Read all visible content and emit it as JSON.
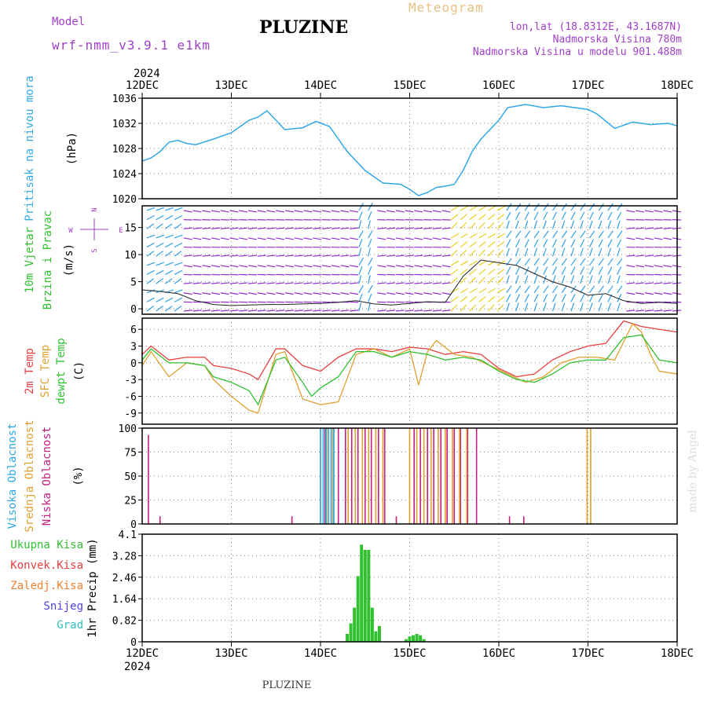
{
  "header": {
    "model_label": "Model",
    "model_name": "wrf-nmm_v3.9.1 e1km",
    "station": "PLUZINE",
    "product": "Meteogram",
    "coords": "lon,lat (18.8312E, 43.1687N)",
    "altitude": "Nadmorska Visina 780m",
    "model_altitude": "Nadmorska Visina u modelu 901.488m"
  },
  "footer": {
    "station": "PLUZINE",
    "credit": "made by Angel"
  },
  "time_axis": {
    "year": "2024",
    "ticks": [
      "12DEC",
      "13DEC",
      "14DEC",
      "15DEC",
      "16DEC",
      "17DEC",
      "18DEC"
    ],
    "range_days": [
      0,
      6
    ]
  },
  "colors": {
    "pressure": "#30a8e8",
    "t2m": "#e84040",
    "tsfc": "#e0a030",
    "dewpt": "#30c030",
    "cloud_high": "#30a8e8",
    "cloud_mid": "#e0a030",
    "cloud_low": "#c02080",
    "precip": "#30c030",
    "wind_purple": "#9030d0",
    "wind_blue": "#30a0e8"
  },
  "chart_data": [
    {
      "type": "line",
      "panel": "pressure",
      "ylabel_lines": [
        "Pritisak na nivou mora",
        "(hPa)"
      ],
      "ylim": [
        1020,
        1036
      ],
      "yticks": [
        "1036",
        "1032",
        "1028",
        "1024",
        "1020"
      ],
      "grid": true,
      "series": [
        {
          "x": [
            0,
            0.1,
            0.2,
            0.3,
            0.4,
            0.5,
            0.6,
            0.8,
            1.0,
            1.1,
            1.2,
            1.3,
            1.4,
            1.5,
            1.6,
            1.8,
            1.95,
            2.1,
            2.3,
            2.5,
            2.7,
            2.9,
            3.0,
            3.1,
            3.2,
            3.3,
            3.4,
            3.5,
            3.6,
            3.7,
            3.8,
            4.0,
            4.1,
            4.3,
            4.5,
            4.7,
            4.9,
            5.0,
            5.1,
            5.3,
            5.5,
            5.7,
            5.9,
            6.0
          ],
          "y": [
            1026,
            1026.5,
            1027.5,
            1029,
            1029.3,
            1028.8,
            1028.6,
            1029.5,
            1030.5,
            1031.5,
            1032.5,
            1033,
            1034,
            1032.5,
            1031,
            1031.3,
            1032.3,
            1031.5,
            1027.5,
            1024.5,
            1022.5,
            1022.3,
            1021.5,
            1020.5,
            1021,
            1021.8,
            1022,
            1022.3,
            1024.5,
            1027.5,
            1029.5,
            1032.5,
            1034.5,
            1035,
            1034.5,
            1034.8,
            1034.4,
            1034.2,
            1033.5,
            1031.2,
            1032.2,
            1031.8,
            1032,
            1031.6
          ]
        }
      ]
    },
    {
      "type": "line",
      "panel": "wind",
      "ylabel_lines": [
        "10m Vjetar",
        "Brzina i Pravac",
        "(m/s)"
      ],
      "compass": [
        "N",
        "W",
        "E",
        "S"
      ],
      "ylim": [
        -1,
        19
      ],
      "yticks": [
        "15",
        "10",
        "5",
        "0"
      ],
      "grid": true,
      "series": [
        {
          "x": [
            0,
            0.2,
            0.4,
            0.6,
            0.8,
            1.0,
            1.2,
            1.4,
            1.6,
            1.8,
            2.0,
            2.2,
            2.4,
            2.6,
            2.8,
            3.0,
            3.2,
            3.4,
            3.6,
            3.8,
            4.0,
            4.2,
            4.4,
            4.6,
            4.8,
            5.0,
            5.2,
            5.4,
            5.6,
            5.8,
            6.0
          ],
          "y": [
            3.5,
            3.2,
            2.8,
            1.5,
            0.8,
            0.6,
            0.7,
            0.8,
            0.8,
            0.9,
            1.0,
            1.2,
            1.5,
            0.9,
            0.7,
            1.0,
            1.3,
            1.2,
            6,
            9,
            8.5,
            8,
            6.5,
            5,
            4,
            2.5,
            2.8,
            1.5,
            1.0,
            1.2,
            1.0
          ]
        }
      ]
    },
    {
      "type": "line",
      "panel": "temperature",
      "ylabel_lines": [
        "2m Temp",
        "SFC Temp",
        "dewpt Temp",
        "(C)"
      ],
      "ylim": [
        -11,
        8
      ],
      "yticks": [
        "6",
        "3",
        "0",
        "-3",
        "-6",
        "-9"
      ],
      "grid": true,
      "series": [
        {
          "name": "2m Temp",
          "x": [
            0,
            0.1,
            0.3,
            0.5,
            0.7,
            0.8,
            1.0,
            1.2,
            1.3,
            1.5,
            1.6,
            1.8,
            2.0,
            2.2,
            2.4,
            2.6,
            2.8,
            3.0,
            3.2,
            3.4,
            3.6,
            3.8,
            4.0,
            4.2,
            4.4,
            4.6,
            4.8,
            5.0,
            5.2,
            5.4,
            5.6,
            5.8,
            6.0
          ],
          "y": [
            1.5,
            3.0,
            0.5,
            1.0,
            1.0,
            -0.5,
            -1.0,
            -2.0,
            -3.0,
            2.5,
            2.5,
            -0.5,
            -1.5,
            1.0,
            2.5,
            2.5,
            2.0,
            2.8,
            2.5,
            1.5,
            2.0,
            1.5,
            -1.0,
            -2.5,
            -2.0,
            0.5,
            2.0,
            3.0,
            3.5,
            7.5,
            6.5,
            6.0,
            5.5
          ]
        },
        {
          "name": "SFC Temp",
          "x": [
            0,
            0.1,
            0.3,
            0.5,
            0.7,
            0.8,
            1.0,
            1.2,
            1.3,
            1.5,
            1.6,
            1.8,
            2.0,
            2.2,
            2.4,
            2.6,
            2.8,
            3.0,
            3.1,
            3.2,
            3.3,
            3.5,
            3.7,
            3.9,
            4.1,
            4.3,
            4.5,
            4.7,
            4.9,
            5.1,
            5.3,
            5.5,
            5.6,
            5.7,
            5.8,
            6.0
          ],
          "y": [
            -0.5,
            2.0,
            -2.5,
            0.0,
            -0.5,
            -3.0,
            -6.0,
            -8.5,
            -9.0,
            1.5,
            2.0,
            -6.5,
            -7.5,
            -7.0,
            1.5,
            2.5,
            1.0,
            2.5,
            -4.0,
            2.0,
            4.0,
            1.5,
            1.0,
            -0.5,
            -2.0,
            -3.5,
            -2.5,
            0.0,
            1.0,
            1.0,
            0.5,
            7.0,
            5.5,
            1.5,
            -1.5,
            -2.0
          ]
        },
        {
          "name": "dewpt Temp",
          "x": [
            0,
            0.1,
            0.3,
            0.5,
            0.7,
            0.8,
            1.0,
            1.2,
            1.3,
            1.5,
            1.6,
            1.8,
            1.9,
            2.0,
            2.2,
            2.4,
            2.6,
            2.8,
            3.0,
            3.2,
            3.4,
            3.6,
            3.8,
            4.0,
            4.2,
            4.4,
            4.6,
            4.8,
            5.0,
            5.2,
            5.4,
            5.6,
            5.8,
            6.0
          ],
          "y": [
            0.5,
            2.5,
            0.0,
            0.0,
            -0.5,
            -2.5,
            -3.5,
            -5.0,
            -7.5,
            0.5,
            1.0,
            -3.5,
            -6.0,
            -4.5,
            -2.5,
            2.0,
            2.0,
            1.0,
            2.0,
            1.5,
            0.5,
            1.0,
            0.5,
            -1.5,
            -3.0,
            -3.5,
            -2.0,
            0.0,
            0.5,
            0.5,
            4.5,
            5.0,
            0.5,
            0.0
          ]
        }
      ]
    },
    {
      "type": "bar",
      "panel": "clouds",
      "ylabel_lines": [
        "Visoka Oblacnost",
        "Srednja Oblacnost",
        "Niska Oblacnost",
        "(%)"
      ],
      "ylim": [
        0,
        100
      ],
      "yticks": [
        "100",
        "75",
        "50",
        "25",
        "0"
      ],
      "grid": true,
      "series": [
        {
          "name": "Niska Oblacnost",
          "x": [
            0.07,
            0.2,
            1.68,
            2.05,
            2.12,
            2.2,
            2.28,
            2.35,
            2.42,
            2.5,
            2.57,
            2.65,
            2.72,
            2.85,
            3.05,
            3.12,
            3.2,
            3.27,
            3.35,
            3.42,
            3.5,
            3.57,
            3.65,
            3.75,
            4.12,
            4.28
          ],
          "y": [
            93,
            8,
            8,
            100,
            100,
            100,
            100,
            100,
            100,
            100,
            100,
            100,
            100,
            8,
            100,
            100,
            100,
            100,
            100,
            100,
            100,
            100,
            100,
            100,
            8,
            8
          ]
        },
        {
          "name": "Srednja Oblacnost",
          "x": [
            2.0,
            2.07,
            2.14,
            2.31,
            2.39,
            2.47,
            2.54,
            2.62,
            2.7,
            3.0,
            3.08,
            3.16,
            3.24,
            3.32,
            3.4,
            3.48,
            3.56,
            3.64,
            4.99,
            5.03
          ],
          "y": [
            100,
            100,
            100,
            100,
            100,
            100,
            100,
            100,
            100,
            100,
            100,
            100,
            100,
            100,
            100,
            100,
            100,
            100,
            100,
            100
          ]
        },
        {
          "name": "Visoka Oblacnost",
          "x": [
            2.0,
            2.03,
            2.06,
            2.09,
            2.12,
            2.15
          ],
          "y": [
            100,
            100,
            100,
            100,
            100,
            100
          ]
        }
      ]
    },
    {
      "type": "bar",
      "panel": "precip",
      "ylabel_lines": [
        "1hr Precip (mm)"
      ],
      "legend": [
        "Ukupna Kisa",
        "Konvek.Kisa",
        "Zaledj.Kisa",
        "Snijeg",
        "Grad"
      ],
      "legend_colors": [
        "#30c030",
        "#e84040",
        "#f08030",
        "#5040e0",
        "#30c0c0"
      ],
      "ylim": [
        0,
        4.1
      ],
      "yticks": [
        "4.1",
        "3.28",
        "2.46",
        "1.64",
        "0.82",
        "0"
      ],
      "grid": true,
      "series": [
        {
          "name": "Ukupna Kisa",
          "x": [
            2.3,
            2.34,
            2.38,
            2.42,
            2.46,
            2.5,
            2.54,
            2.58,
            2.62,
            2.66,
            2.96,
            3.0,
            3.04,
            3.08,
            3.12,
            3.16
          ],
          "y": [
            0.3,
            0.7,
            1.3,
            2.5,
            3.7,
            3.5,
            3.5,
            1.3,
            0.4,
            0.6,
            0.1,
            0.2,
            0.25,
            0.3,
            0.25,
            0.1
          ]
        }
      ]
    }
  ]
}
